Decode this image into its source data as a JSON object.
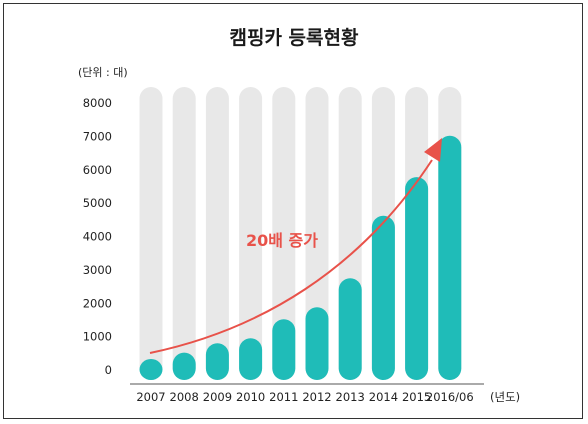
{
  "chart_data": {
    "type": "bar",
    "title": "캠핑카 등록현황",
    "unit_label": "(단위 : 대)",
    "x_unit_label": "(년도)",
    "categories": [
      "2007",
      "2008",
      "2009",
      "2010",
      "2011",
      "2012",
      "2013",
      "2014",
      "2015",
      "2016/06"
    ],
    "values": [
      330,
      520,
      800,
      950,
      1520,
      1880,
      2750,
      4620,
      5780,
      7020
    ],
    "ylim": [
      0,
      8000
    ],
    "yticks": [
      "0",
      "1000",
      "2000",
      "3000",
      "4000",
      "5000",
      "6000",
      "7000",
      "8000"
    ],
    "grid": false,
    "colors": {
      "bar": "#1fbcb8",
      "track": "#e8e8e8",
      "arrow": "#e8524a"
    },
    "annotation": {
      "text": "20배 증가",
      "arrow": "up-right"
    }
  }
}
